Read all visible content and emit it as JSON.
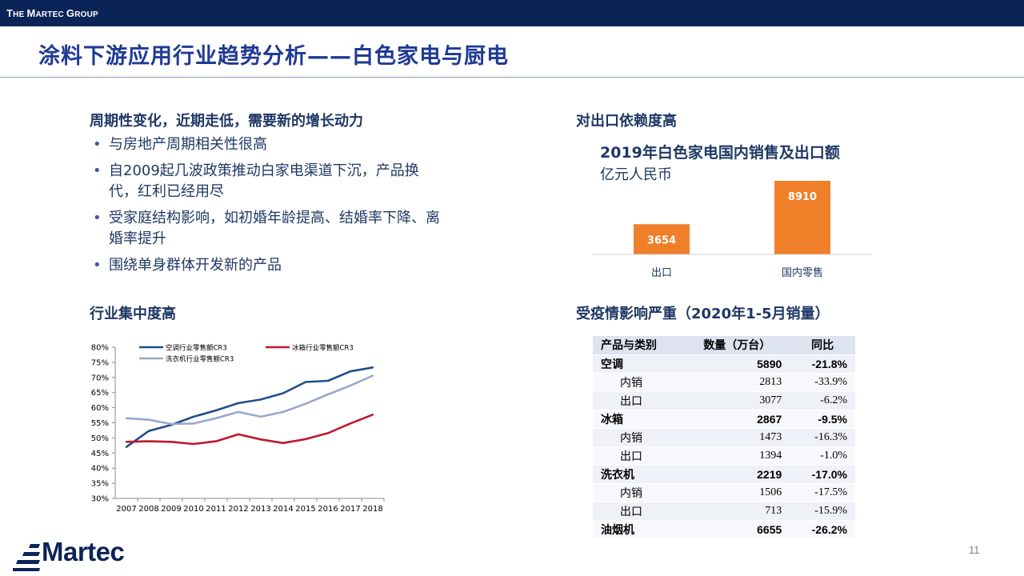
{
  "brand": {
    "first_big": "T",
    "first_small": "HE ",
    "second_big": "M",
    "second_small": "ARTEC ",
    "third_big": "G",
    "third_small": "ROUP"
  },
  "title": "涂料下游应用行业趋势分析——白色家电与厨电",
  "left": {
    "heading1": "周期性变化，近期走低，需要新的增长动力",
    "bullets": [
      "与房地产周期相关性很高",
      "自2009起几波政策推动白家电渠道下沉，产品换代，红利已经用尽",
      "受家庭结构影响，如初婚年龄提高、结婚率下降、离婚率提升",
      "围绕单身群体开发新的产品"
    ],
    "heading2": "行业集中度高"
  },
  "right": {
    "heading1": "对出口依赖度高",
    "chart_title": "2019年白色家电国内销售及出口额",
    "chart_unit": "亿元人民币",
    "heading2": "受疫情影响严重（2020年1-5月销量）"
  },
  "chart_data": [
    {
      "type": "line",
      "x": [
        "2007",
        "2008",
        "2009",
        "2010",
        "2011",
        "2012",
        "2013",
        "2014",
        "2015",
        "2016",
        "2017",
        "2018"
      ],
      "ylim": [
        30,
        80
      ],
      "yticks": [
        "30%",
        "35%",
        "40%",
        "45%",
        "50%",
        "55%",
        "60%",
        "65%",
        "70%",
        "75%",
        "80%"
      ],
      "series": [
        {
          "name": "空调行业零售额CR3",
          "color": "#1f4e8c",
          "values": [
            47.0,
            52.3,
            54.3,
            57.0,
            59.1,
            61.5,
            62.7,
            64.8,
            68.5,
            68.9,
            72.0,
            73.3
          ]
        },
        {
          "name": "冰箱行业零售额CR3",
          "color": "#c0182b",
          "values": [
            48.7,
            48.9,
            48.7,
            48.0,
            48.9,
            51.2,
            49.5,
            48.3,
            49.6,
            51.6,
            54.8,
            57.7
          ]
        },
        {
          "name": "洗衣机行业零售额CR3",
          "color": "#9aa8cc",
          "values": [
            56.5,
            56.0,
            54.6,
            54.8,
            56.5,
            58.6,
            57.0,
            58.6,
            61.3,
            64.4,
            67.3,
            70.6
          ]
        }
      ]
    },
    {
      "type": "bar",
      "categories": [
        "出口",
        "国内零售"
      ],
      "values": [
        3654,
        8910
      ],
      "color": "#f07f2a",
      "title": "2019年白色家电国内销售及出口额",
      "ylabel": "亿元人民币"
    },
    {
      "type": "table",
      "columns": [
        "产品与类别",
        "数量（万台）",
        "同比"
      ],
      "rows": [
        {
          "label": "空调",
          "qty": "5890",
          "yoy": "-21.8%",
          "bold": true
        },
        {
          "label": "内销",
          "qty": "2813",
          "yoy": "-33.9%",
          "bold": false
        },
        {
          "label": "出口",
          "qty": "3077",
          "yoy": "-6.2%",
          "bold": false
        },
        {
          "label": "冰箱",
          "qty": "2867",
          "yoy": "-9.5%",
          "bold": true
        },
        {
          "label": "内销",
          "qty": "1473",
          "yoy": "-16.3%",
          "bold": false
        },
        {
          "label": "出口",
          "qty": "1394",
          "yoy": "-1.0%",
          "bold": false
        },
        {
          "label": "洗衣机",
          "qty": "2219",
          "yoy": "-17.0%",
          "bold": true
        },
        {
          "label": "内销",
          "qty": "1506",
          "yoy": "-17.5%",
          "bold": false
        },
        {
          "label": "出口",
          "qty": "713",
          "yoy": "-15.9%",
          "bold": false
        },
        {
          "label": "油烟机",
          "qty": "6655",
          "yoy": "-26.2%",
          "bold": true
        }
      ]
    }
  ],
  "footer": {
    "logo_text": "Martec",
    "page": "11"
  },
  "colors": {
    "navy": "#0b2457",
    "title_blue": "#1f3a93",
    "text": "#1f3864",
    "orange": "#f07f2a"
  }
}
